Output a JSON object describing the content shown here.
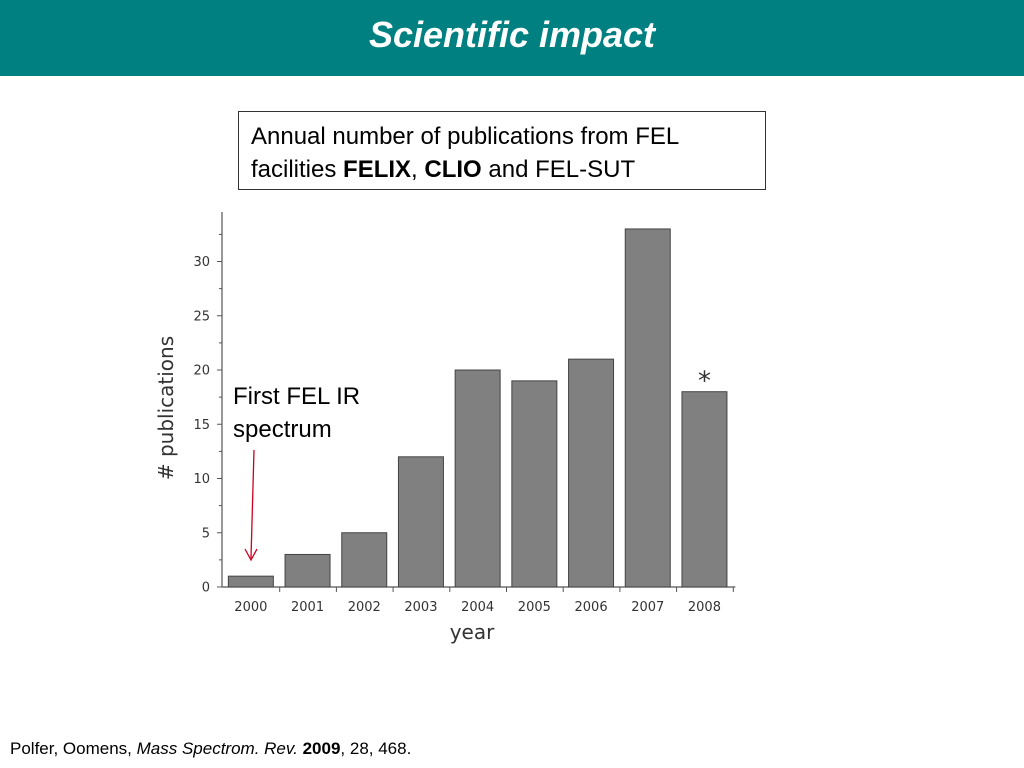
{
  "slide": {
    "title": "Scientific impact",
    "colors": {
      "title_bar": "#008080",
      "bar_fill": "#808080",
      "arrow": "#cc0022"
    }
  },
  "caption": {
    "line1": "Annual number of publications from FEL",
    "line2_prefix": "facilities ",
    "felix": "FELIX",
    "comma": ", ",
    "clio": "CLIO",
    "line2_suffix": " and FEL-SUT"
  },
  "annotation": {
    "line1": "First FEL IR",
    "line2": "spectrum"
  },
  "citation": {
    "authors": "Polfer, Oomens, ",
    "journal": "Mass Spectrom. Rev.",
    "space": " ",
    "year": "2009",
    "rest": ", 28, 468."
  },
  "chart_data": {
    "type": "bar",
    "categories": [
      "2000",
      "2001",
      "2002",
      "2003",
      "2004",
      "2005",
      "2006",
      "2007",
      "2008"
    ],
    "values": [
      1,
      3,
      5,
      12,
      20,
      19,
      21,
      33,
      18
    ],
    "xlabel": "year",
    "ylabel": "# publications",
    "ylim": [
      0,
      35
    ],
    "yticks": [
      0,
      5,
      10,
      15,
      20,
      25,
      30
    ],
    "bar_markers": {
      "2008": "*"
    },
    "grid": false
  }
}
